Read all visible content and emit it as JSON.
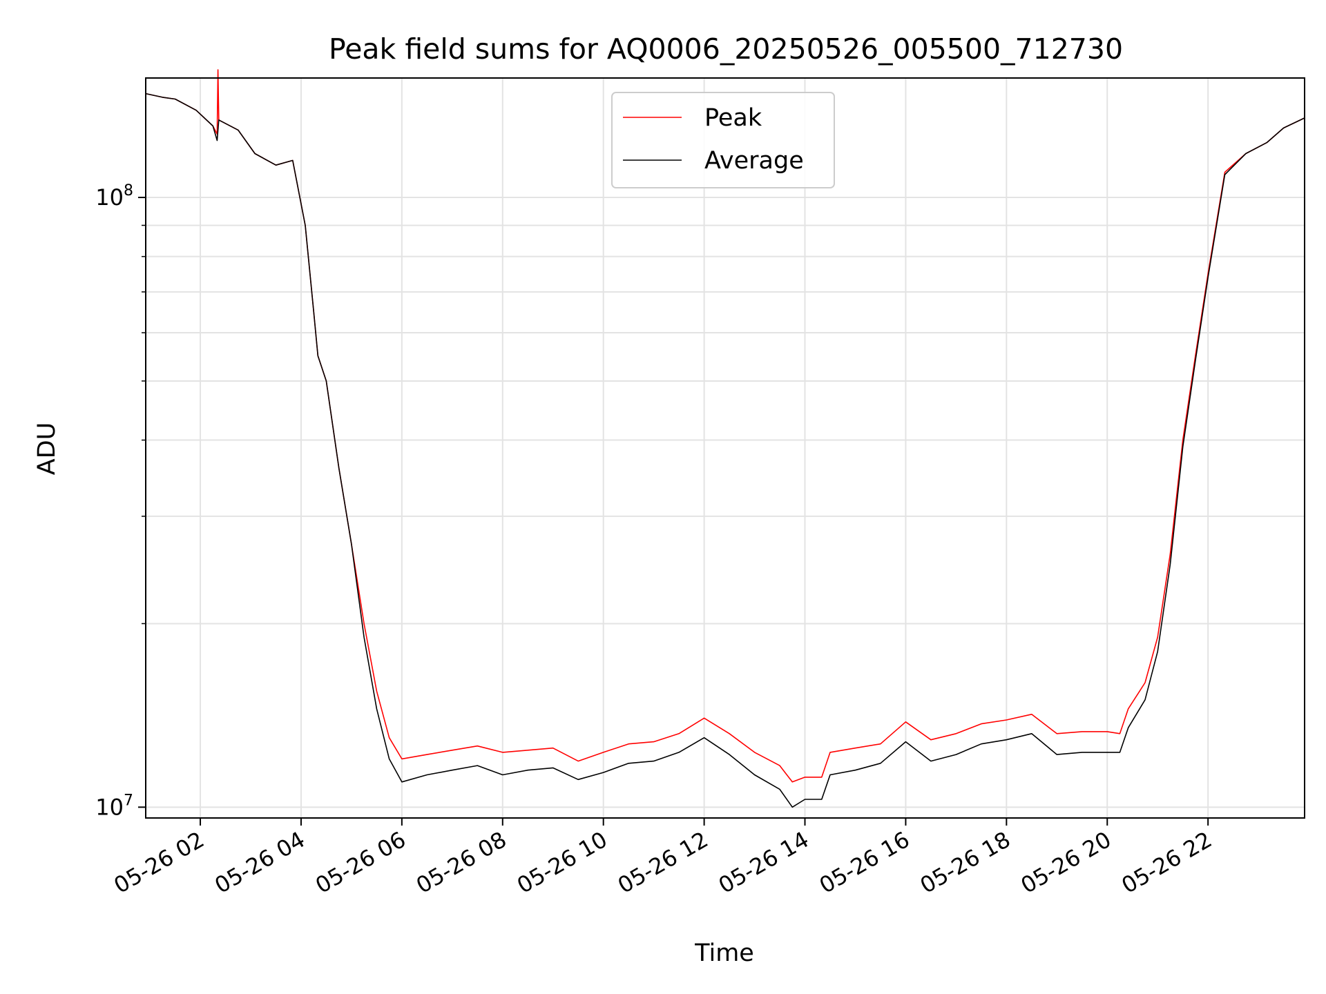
{
  "chart_data": {
    "type": "line",
    "title": "Peak field sums for AQ0006_20250526_005500_712730",
    "xlabel": "Time",
    "ylabel": "ADU",
    "yscale": "log",
    "ylim": [
      9600000,
      157000000
    ],
    "xlim": [
      "2025-05-26 00:55",
      "2025-05-26 23:55"
    ],
    "x_ticks": [
      "05-26 02",
      "05-26 04",
      "05-26 06",
      "05-26 08",
      "05-26 10",
      "05-26 12",
      "05-26 14",
      "05-26 16",
      "05-26 18",
      "05-26 20",
      "05-26 22"
    ],
    "y_ticks": [
      {
        "value": 10000000,
        "base": "10",
        "exp": "7"
      },
      {
        "value": 100000000,
        "base": "10",
        "exp": "8"
      }
    ],
    "grid": true,
    "legend_position": "top-center",
    "series": [
      {
        "name": "Peak",
        "color": "#ff0000",
        "points": [
          [
            "2025-05-26 00:55",
            148000000
          ],
          [
            "2025-05-26 01:15",
            146000000
          ],
          [
            "2025-05-26 01:30",
            145000000
          ],
          [
            "2025-05-26 01:55",
            139000000
          ],
          [
            "2025-05-26 02:15",
            131000000
          ],
          [
            "2025-05-26 02:20",
            127000000
          ],
          [
            "2025-05-26 02:21",
            162000000
          ],
          [
            "2025-05-26 02:22",
            134000000
          ],
          [
            "2025-05-26 02:45",
            129000000
          ],
          [
            "2025-05-26 03:05",
            118000000
          ],
          [
            "2025-05-26 03:30",
            113000000
          ],
          [
            "2025-05-26 03:50",
            115000000
          ],
          [
            "2025-05-26 04:05",
            90000000
          ],
          [
            "2025-05-26 04:15",
            65000000
          ],
          [
            "2025-05-26 04:20",
            55000000
          ],
          [
            "2025-05-26 04:30",
            50000000
          ],
          [
            "2025-05-26 04:45",
            36000000
          ],
          [
            "2025-05-26 05:00",
            27000000
          ],
          [
            "2025-05-26 05:15",
            20000000
          ],
          [
            "2025-05-26 05:30",
            15500000
          ],
          [
            "2025-05-26 05:45",
            13000000
          ],
          [
            "2025-05-26 06:00",
            12000000
          ],
          [
            "2025-05-26 06:30",
            12200000
          ],
          [
            "2025-05-26 07:00",
            12400000
          ],
          [
            "2025-05-26 07:30",
            12600000
          ],
          [
            "2025-05-26 08:00",
            12300000
          ],
          [
            "2025-05-26 08:30",
            12400000
          ],
          [
            "2025-05-26 09:00",
            12500000
          ],
          [
            "2025-05-26 09:30",
            11900000
          ],
          [
            "2025-05-26 10:00",
            12300000
          ],
          [
            "2025-05-26 10:30",
            12700000
          ],
          [
            "2025-05-26 11:00",
            12800000
          ],
          [
            "2025-05-26 11:30",
            13200000
          ],
          [
            "2025-05-26 12:00",
            14000000
          ],
          [
            "2025-05-26 12:30",
            13200000
          ],
          [
            "2025-05-26 13:00",
            12300000
          ],
          [
            "2025-05-26 13:30",
            11700000
          ],
          [
            "2025-05-26 13:45",
            11000000
          ],
          [
            "2025-05-26 14:00",
            11200000
          ],
          [
            "2025-05-26 14:20",
            11200000
          ],
          [
            "2025-05-26 14:30",
            12300000
          ],
          [
            "2025-05-26 15:00",
            12500000
          ],
          [
            "2025-05-26 15:30",
            12700000
          ],
          [
            "2025-05-26 16:00",
            13800000
          ],
          [
            "2025-05-26 16:30",
            12900000
          ],
          [
            "2025-05-26 17:00",
            13200000
          ],
          [
            "2025-05-26 17:30",
            13700000
          ],
          [
            "2025-05-26 18:00",
            13900000
          ],
          [
            "2025-05-26 18:30",
            14200000
          ],
          [
            "2025-05-26 19:00",
            13200000
          ],
          [
            "2025-05-26 19:30",
            13300000
          ],
          [
            "2025-05-26 20:00",
            13300000
          ],
          [
            "2025-05-26 20:15",
            13200000
          ],
          [
            "2025-05-26 20:25",
            14500000
          ],
          [
            "2025-05-26 20:45",
            16000000
          ],
          [
            "2025-05-26 21:00",
            19000000
          ],
          [
            "2025-05-26 21:15",
            26000000
          ],
          [
            "2025-05-26 21:30",
            40000000
          ],
          [
            "2025-05-26 21:45",
            55000000
          ],
          [
            "2025-05-26 22:00",
            75000000
          ],
          [
            "2025-05-26 22:20",
            110000000
          ],
          [
            "2025-05-26 22:45",
            118000000
          ],
          [
            "2025-05-26 23:10",
            123000000
          ],
          [
            "2025-05-26 23:30",
            130000000
          ],
          [
            "2025-05-26 23:55",
            135000000
          ]
        ]
      },
      {
        "name": "Average",
        "color": "#000000",
        "points": [
          [
            "2025-05-26 00:55",
            148000000
          ],
          [
            "2025-05-26 01:15",
            146000000
          ],
          [
            "2025-05-26 01:30",
            145000000
          ],
          [
            "2025-05-26 01:55",
            139000000
          ],
          [
            "2025-05-26 02:15",
            131000000
          ],
          [
            "2025-05-26 02:20",
            124000000
          ],
          [
            "2025-05-26 02:22",
            134000000
          ],
          [
            "2025-05-26 02:45",
            129000000
          ],
          [
            "2025-05-26 03:05",
            118000000
          ],
          [
            "2025-05-26 03:30",
            113000000
          ],
          [
            "2025-05-26 03:50",
            115000000
          ],
          [
            "2025-05-26 04:05",
            90000000
          ],
          [
            "2025-05-26 04:15",
            65000000
          ],
          [
            "2025-05-26 04:20",
            55000000
          ],
          [
            "2025-05-26 04:30",
            50000000
          ],
          [
            "2025-05-26 04:45",
            36000000
          ],
          [
            "2025-05-26 05:00",
            27000000
          ],
          [
            "2025-05-26 05:15",
            19000000
          ],
          [
            "2025-05-26 05:30",
            14500000
          ],
          [
            "2025-05-26 05:45",
            12000000
          ],
          [
            "2025-05-26 06:00",
            11000000
          ],
          [
            "2025-05-26 06:30",
            11300000
          ],
          [
            "2025-05-26 07:00",
            11500000
          ],
          [
            "2025-05-26 07:30",
            11700000
          ],
          [
            "2025-05-26 08:00",
            11300000
          ],
          [
            "2025-05-26 08:30",
            11500000
          ],
          [
            "2025-05-26 09:00",
            11600000
          ],
          [
            "2025-05-26 09:30",
            11100000
          ],
          [
            "2025-05-26 10:00",
            11400000
          ],
          [
            "2025-05-26 10:30",
            11800000
          ],
          [
            "2025-05-26 11:00",
            11900000
          ],
          [
            "2025-05-26 11:30",
            12300000
          ],
          [
            "2025-05-26 12:00",
            13000000
          ],
          [
            "2025-05-26 12:30",
            12200000
          ],
          [
            "2025-05-26 13:00",
            11300000
          ],
          [
            "2025-05-26 13:30",
            10700000
          ],
          [
            "2025-05-26 13:45",
            10000000
          ],
          [
            "2025-05-26 14:00",
            10300000
          ],
          [
            "2025-05-26 14:20",
            10300000
          ],
          [
            "2025-05-26 14:30",
            11300000
          ],
          [
            "2025-05-26 15:00",
            11500000
          ],
          [
            "2025-05-26 15:30",
            11800000
          ],
          [
            "2025-05-26 16:00",
            12800000
          ],
          [
            "2025-05-26 16:30",
            11900000
          ],
          [
            "2025-05-26 17:00",
            12200000
          ],
          [
            "2025-05-26 17:30",
            12700000
          ],
          [
            "2025-05-26 18:00",
            12900000
          ],
          [
            "2025-05-26 18:30",
            13200000
          ],
          [
            "2025-05-26 19:00",
            12200000
          ],
          [
            "2025-05-26 19:30",
            12300000
          ],
          [
            "2025-05-26 20:00",
            12300000
          ],
          [
            "2025-05-26 20:15",
            12300000
          ],
          [
            "2025-05-26 20:25",
            13500000
          ],
          [
            "2025-05-26 20:45",
            15000000
          ],
          [
            "2025-05-26 21:00",
            18000000
          ],
          [
            "2025-05-26 21:15",
            25000000
          ],
          [
            "2025-05-26 21:30",
            39000000
          ],
          [
            "2025-05-26 21:45",
            54000000
          ],
          [
            "2025-05-26 22:00",
            74000000
          ],
          [
            "2025-05-26 22:20",
            109000000
          ],
          [
            "2025-05-26 22:45",
            118000000
          ],
          [
            "2025-05-26 23:10",
            123000000
          ],
          [
            "2025-05-26 23:30",
            130000000
          ],
          [
            "2025-05-26 23:55",
            135000000
          ]
        ]
      }
    ]
  }
}
